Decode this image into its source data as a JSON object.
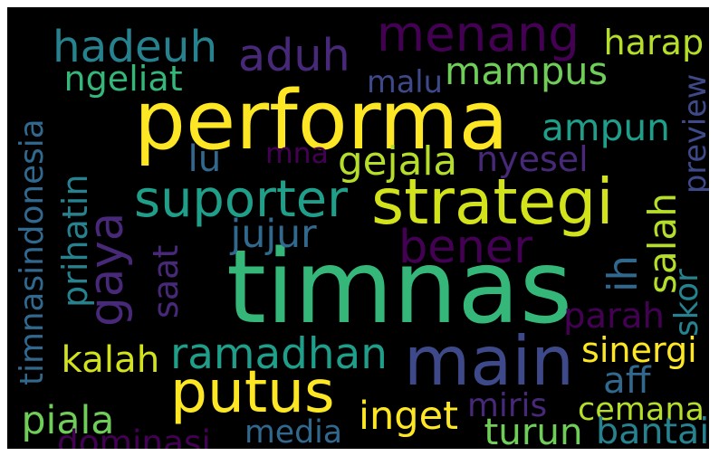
{
  "palette": {
    "background": "#000000",
    "frame": "#ffffff",
    "yellow": "#fde725",
    "lime": "#b5de2b",
    "green": "#6ece58",
    "teal_green": "#35b779",
    "green_teal": "#1f9e89",
    "teal": "#26828e",
    "steel_blue": "#31688e",
    "indigo": "#3e4989",
    "dark_purple": "#482878",
    "deep_purple": "#440154"
  },
  "words": [
    {
      "text": "timnas",
      "color": "#35b779"
    },
    {
      "text": "performa",
      "color": "#fde725"
    },
    {
      "text": "main",
      "color": "#3e4989"
    },
    {
      "text": "menang",
      "color": "#440154"
    },
    {
      "text": "strategi",
      "color": "#d2e21b"
    },
    {
      "text": "putus",
      "color": "#fde725"
    },
    {
      "text": "hadeuh",
      "color": "#26828e"
    },
    {
      "text": "aduh",
      "color": "#482878"
    },
    {
      "text": "mampus",
      "color": "#6ece58"
    },
    {
      "text": "ampun",
      "color": "#1f9e89"
    },
    {
      "text": "gaya",
      "color": "#482878"
    },
    {
      "text": "suporter",
      "color": "#1f9e89"
    },
    {
      "text": "bener",
      "color": "#440154"
    },
    {
      "text": "ramadhan",
      "color": "#1f9e89"
    },
    {
      "text": "ih",
      "color": "#31688e"
    },
    {
      "text": "harap",
      "color": "#b5de2b"
    },
    {
      "text": "ngeliat",
      "color": "#35b779"
    },
    {
      "text": "malu",
      "color": "#3e4989"
    },
    {
      "text": "preview",
      "color": "#3e4989"
    },
    {
      "text": "timnasindonesia",
      "color": "#31688e"
    },
    {
      "text": "lu",
      "color": "#31688e"
    },
    {
      "text": "mna",
      "color": "#440154"
    },
    {
      "text": "gejala",
      "color": "#b5de2b"
    },
    {
      "text": "nyesel",
      "color": "#482878"
    },
    {
      "text": "prihatin",
      "color": "#26828e"
    },
    {
      "text": "jujur",
      "color": "#31688e"
    },
    {
      "text": "salah",
      "color": "#b5de2b"
    },
    {
      "text": "saat",
      "color": "#482878"
    },
    {
      "text": "skor",
      "color": "#26828e"
    },
    {
      "text": "parah",
      "color": "#440154"
    },
    {
      "text": "kalah",
      "color": "#d2e21b"
    },
    {
      "text": "sinergi",
      "color": "#fde725"
    },
    {
      "text": "aff",
      "color": "#31688e"
    },
    {
      "text": "piala",
      "color": "#6ece58"
    },
    {
      "text": "inget",
      "color": "#fde725"
    },
    {
      "text": "miris",
      "color": "#482878"
    },
    {
      "text": "cemana",
      "color": "#b5de2b"
    },
    {
      "text": "turun",
      "color": "#6ece58"
    },
    {
      "text": "media",
      "color": "#31688e"
    },
    {
      "text": "bantai",
      "color": "#26828e"
    },
    {
      "text": "dominasi",
      "color": "#440154"
    }
  ]
}
